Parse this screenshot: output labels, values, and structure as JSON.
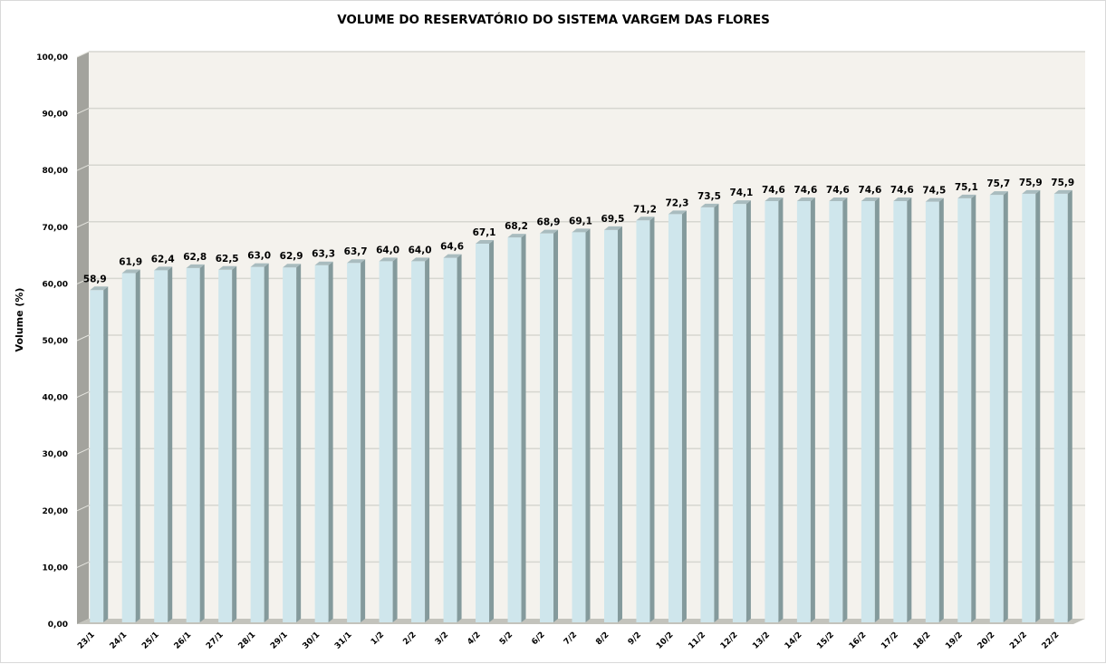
{
  "chart_data": {
    "type": "bar",
    "title": "VOLUME DO RESERVATÓRIO DO SISTEMA VARGEM DAS FLORES",
    "xlabel": "",
    "ylabel": "Volume (%)",
    "ylim": [
      0,
      100
    ],
    "yticks": [
      "0,00",
      "10,00",
      "20,00",
      "30,00",
      "40,00",
      "50,00",
      "60,00",
      "70,00",
      "80,00",
      "90,00",
      "100,00"
    ],
    "grid": true,
    "categories": [
      "23/1",
      "24/1",
      "25/1",
      "26/1",
      "27/1",
      "28/1",
      "29/1",
      "30/1",
      "31/1",
      "1/2",
      "2/2",
      "3/2",
      "4/2",
      "5/2",
      "6/2",
      "7/2",
      "8/2",
      "9/2",
      "10/2",
      "11/2",
      "12/2",
      "13/2",
      "14/2",
      "15/2",
      "16/2",
      "17/2",
      "18/2",
      "19/2",
      "20/2",
      "21/2",
      "22/2"
    ],
    "values": [
      58.9,
      61.9,
      62.4,
      62.8,
      62.5,
      63.0,
      62.9,
      63.3,
      63.7,
      64.0,
      64.0,
      64.6,
      67.1,
      68.2,
      68.9,
      69.1,
      69.5,
      71.2,
      72.3,
      73.5,
      74.1,
      74.6,
      74.6,
      74.6,
      74.6,
      74.6,
      74.5,
      75.1,
      75.7,
      75.9,
      75.9
    ],
    "data_labels": [
      "58,9",
      "61,9",
      "62,4",
      "62,8",
      "62,5",
      "63,0",
      "62,9",
      "63,3",
      "63,7",
      "64,0",
      "64,0",
      "64,6",
      "67,1",
      "68,2",
      "68,9",
      "69,1",
      "69,5",
      "71,2",
      "72,3",
      "73,5",
      "74,1",
      "74,6",
      "74,6",
      "74,6",
      "74,6",
      "74,6",
      "74,5",
      "75,1",
      "75,7",
      "75,9",
      "75,9"
    ],
    "colors": {
      "bar_front": "#cfe6ec",
      "bar_side": "#849a9c",
      "bar_top": "#a9bcbf",
      "wall": "#f4f2ed",
      "left_wall": "#a3a39d",
      "floor": "#c3c3bc",
      "grid": "#d6d6d0"
    }
  }
}
